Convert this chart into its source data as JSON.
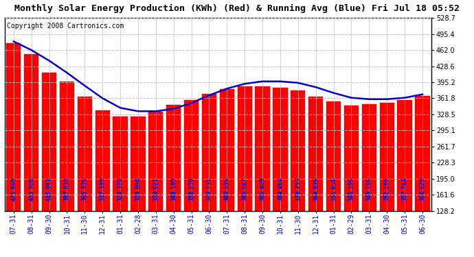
{
  "title": "Monthly Solar Energy Production (KWh) (Red) & Running Avg (Blue) Fri Jul 18 05:52",
  "copyright": "Copyright 2008 Cartronics.com",
  "categories": [
    "07-31",
    "08-31",
    "09-30",
    "10-31",
    "11-30",
    "12-31",
    "01-31",
    "02-28",
    "03-31",
    "04-30",
    "05-31",
    "06-30",
    "07-31",
    "08-31",
    "09-30",
    "10-31",
    "11-30",
    "12-31",
    "01-31",
    "02-29",
    "03-31",
    "04-30",
    "05-31",
    "06-30"
  ],
  "bar_values": [
    475.669,
    453.908,
    415.043,
    397.03,
    365.336,
    337.39,
    324.37,
    324.004,
    334.621,
    348.189,
    358.23,
    370.751,
    380.536,
    386.047,
    386.409,
    384.464,
    378.293,
    364.836,
    355.654,
    346.106,
    349.166,
    352.19,
    357.744,
    366.62
  ],
  "running_avg": [
    480.0,
    462.0,
    440.0,
    415.0,
    388.0,
    362.0,
    342.0,
    335.0,
    335.0,
    340.0,
    352.0,
    368.0,
    382.0,
    392.0,
    397.0,
    397.0,
    394.0,
    385.0,
    373.0,
    363.0,
    360.0,
    360.0,
    363.0,
    370.0
  ],
  "bar_color": "#ff0000",
  "line_color": "#0000cc",
  "bg_color": "#ffffff",
  "plot_bg_color": "#ffffff",
  "grid_color": "#c0c0c0",
  "text_color": "#0000cc",
  "ylim_min": 128.2,
  "ylim_max": 528.7,
  "yticks": [
    128.2,
    161.6,
    195.0,
    228.3,
    261.7,
    295.1,
    328.5,
    361.8,
    395.2,
    428.6,
    462.0,
    495.4,
    528.7
  ],
  "title_fontsize": 9.5,
  "copyright_fontsize": 7,
  "bar_label_fontsize": 5.5,
  "tick_label_fontsize": 7
}
